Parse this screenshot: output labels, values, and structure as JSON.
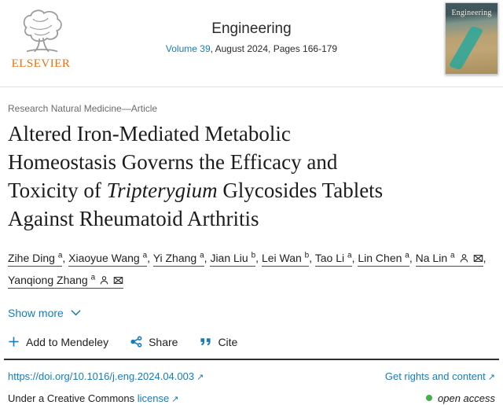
{
  "header": {
    "publisher_name": "ELSEVIER",
    "journal_title": "Engineering",
    "volume_label": "Volume 39",
    "issue_rest": ", August 2024, Pages 166-179",
    "cover_title": "Engineering"
  },
  "article": {
    "category": "Research Natural Medicine—Article",
    "title_lines": [
      [
        {
          "t": "Altered Iron-Mediated Metabolic"
        }
      ],
      [
        {
          "t": "Homeostasis Governs the Efficacy and"
        }
      ],
      [
        {
          "t": "Toxicity of "
        },
        {
          "t": "Tripterygium",
          "i": true
        },
        {
          "t": " Glycosides Tablets"
        }
      ],
      [
        {
          "t": "Against Rheumatoid Arthritis"
        }
      ]
    ],
    "show_more_label": "Show more"
  },
  "authors": [
    {
      "name": "Zihe Ding",
      "sup": "a",
      "person_icon": false,
      "email_icon": false
    },
    {
      "name": "Xiaoyue Wang",
      "sup": "a",
      "person_icon": false,
      "email_icon": false
    },
    {
      "name": "Yi Zhang",
      "sup": "a",
      "person_icon": false,
      "email_icon": false
    },
    {
      "name": "Jian Liu",
      "sup": "b",
      "person_icon": false,
      "email_icon": false
    },
    {
      "name": "Lei Wan",
      "sup": "b",
      "person_icon": false,
      "email_icon": false
    },
    {
      "name": "Tao Li",
      "sup": "a",
      "person_icon": false,
      "email_icon": false
    },
    {
      "name": "Lin Chen",
      "sup": "a",
      "person_icon": false,
      "email_icon": false
    },
    {
      "name": "Na Lin",
      "sup": "a",
      "person_icon": true,
      "email_icon": true
    },
    {
      "name": "Yanqiong Zhang",
      "sup": "a",
      "person_icon": true,
      "email_icon": true
    }
  ],
  "author_separator": ", ",
  "actions": [
    {
      "label": "Add to Mendeley",
      "icon": "plus-icon"
    },
    {
      "label": "Share",
      "icon": "share-icon"
    },
    {
      "label": "Cite",
      "icon": "cite-icon"
    }
  ],
  "footer": {
    "doi_link": "https://doi.org/10.1016/j.eng.2024.04.003",
    "rights_link": "Get rights and content",
    "license_prefix": "Under a Creative Commons",
    "license_link": "license",
    "open_access_label": "open access",
    "external_arrow": "↗"
  },
  "colors": {
    "link_blue": "#1a7bb8",
    "elsevier_orange": "#e8710d",
    "open_access_green": "#43b049",
    "text_dark": "#212121",
    "text_gray": "#6b6b6b"
  }
}
